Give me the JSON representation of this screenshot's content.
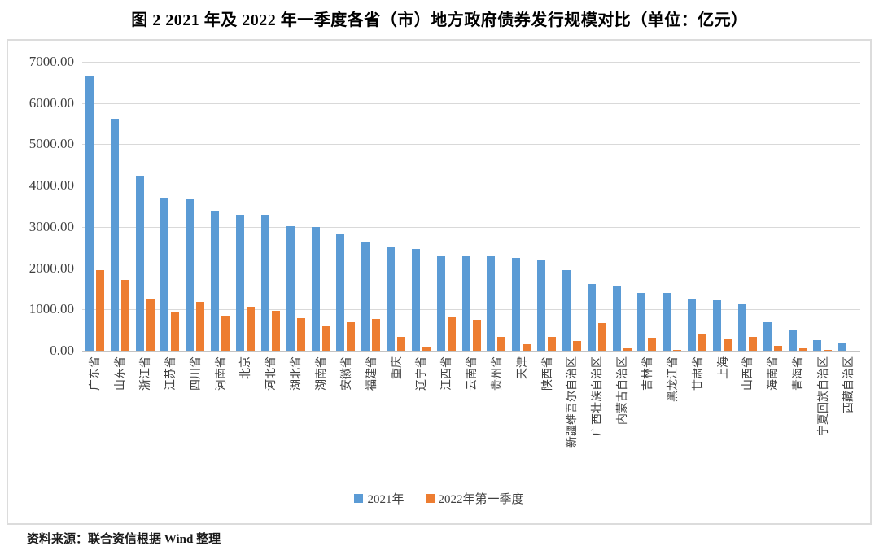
{
  "source_note": "资料来源：联合资信根据 Wind 整理",
  "chart_data": {
    "type": "bar",
    "title": "图 2  2021 年及 2022 年一季度各省（市）地方政府债券发行规模对比（单位：亿元）",
    "xlabel": "",
    "ylabel": "",
    "unit": "亿元",
    "ylim": [
      0,
      7000
    ],
    "ytick_interval": 1000,
    "ytick_labels": [
      "0.00",
      "1000.00",
      "2000.00",
      "3000.00",
      "4000.00",
      "5000.00",
      "6000.00",
      "7000.00"
    ],
    "grid": true,
    "legend_position": "bottom",
    "colors": {
      "series_2021": "#5B9BD5",
      "series_2022q1": "#ED7D31",
      "gridline": "#D9D9D9",
      "axis_line": "#C3C3C3",
      "axis_text": "#404040"
    },
    "categories": [
      "广东省",
      "山东省",
      "浙江省",
      "江苏省",
      "四川省",
      "河南省",
      "北京",
      "河北省",
      "湖北省",
      "湖南省",
      "安徽省",
      "福建省",
      "重庆",
      "辽宁省",
      "江西省",
      "云南省",
      "贵州省",
      "天津",
      "陕西省",
      "新疆维吾尔自治区",
      "广西壮族自治区",
      "内蒙古自治区",
      "吉林省",
      "黑龙江省",
      "甘肃省",
      "上海",
      "山西省",
      "海南省",
      "青海省",
      "宁夏回族自治区",
      "西藏自治区"
    ],
    "series": [
      {
        "name": "2021年",
        "color": "#5B9BD5",
        "values": [
          6670,
          5620,
          4230,
          3700,
          3690,
          3400,
          3300,
          3290,
          3010,
          3000,
          2820,
          2650,
          2520,
          2470,
          2290,
          2290,
          2280,
          2250,
          2200,
          1950,
          1620,
          1570,
          1410,
          1400,
          1250,
          1220,
          1140,
          700,
          520,
          260,
          170
        ]
      },
      {
        "name": "2022年第一季度",
        "color": "#ED7D31",
        "values": [
          1960,
          1720,
          1250,
          920,
          1190,
          850,
          1060,
          960,
          790,
          600,
          690,
          760,
          330,
          100,
          820,
          750,
          330,
          150,
          340,
          240,
          670,
          50,
          310,
          20,
          400,
          300,
          340,
          120,
          50,
          15,
          0
        ]
      }
    ]
  }
}
